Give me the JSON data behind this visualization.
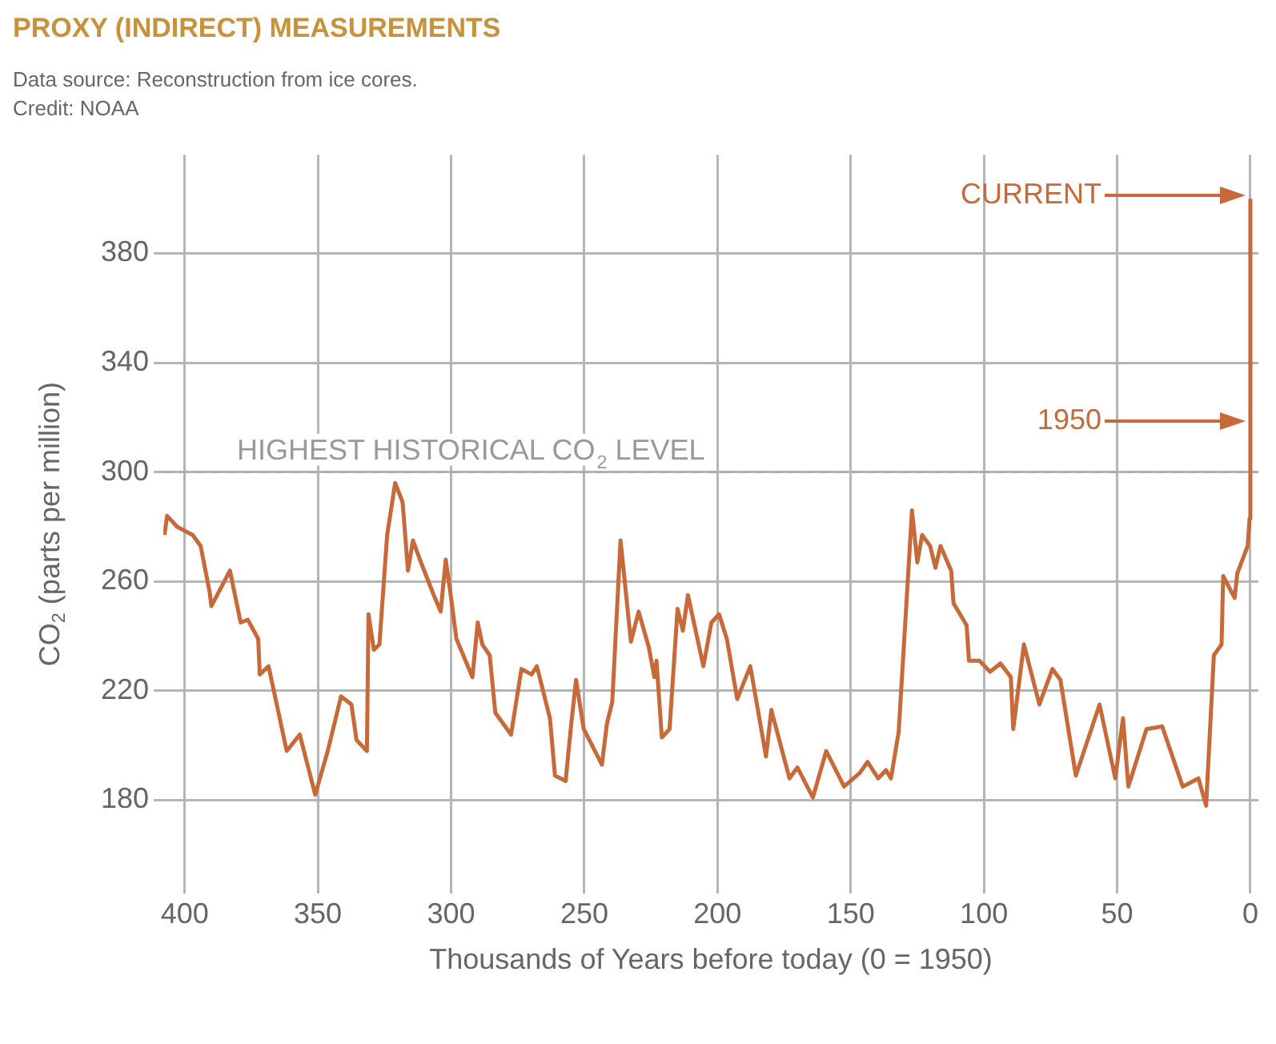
{
  "chart_data": {
    "type": "line",
    "title": "PROXY (INDIRECT) MEASUREMENTS",
    "subtitle": "Data source: Reconstruction from ice cores.",
    "xlabel": "Thousands of Years before today (0 = 1950)",
    "ylabel": "CO$_{2}$ (parts per million)",
    "x": [
      407.6,
      406.6,
      402.8,
      397,
      394,
      390.6,
      390,
      383,
      379,
      376.3,
      372.4,
      371.8,
      368.5,
      361.7,
      356.8,
      351,
      346.3,
      341.3,
      337.4,
      335.5,
      331.6,
      331,
      329,
      326.9,
      324,
      321,
      318.2,
      316.2,
      314.3,
      311.7,
      306.9,
      303.9,
      302,
      300,
      298,
      292,
      290,
      288.3,
      285.5,
      283.4,
      277.5,
      273.6,
      269.8,
      267.8,
      262.9,
      261,
      257,
      255.1,
      253.1,
      250.2,
      243.4,
      241.5,
      239.5,
      236.4,
      232.5,
      229.6,
      225.8,
      223.7,
      222.9,
      220.9,
      218,
      215,
      213,
      211.1,
      205.3,
      202.3,
      199.4,
      196.5,
      192.6,
      187.7,
      181.8,
      179.8,
      173,
      170,
      164.2,
      159.2,
      152.5,
      146.6,
      143.7,
      139.7,
      136.8,
      134.9,
      132,
      127,
      125,
      123.2,
      120.2,
      118.2,
      116.3,
      112.3,
      111.4,
      106.5,
      105.6,
      101.7,
      97.7,
      93.8,
      89.9,
      89,
      85,
      79.2,
      74.3,
      71.3,
      65.5,
      56.6,
      50.7,
      47.8,
      45.8,
      39,
      33.1,
      25.4,
      19.5,
      16.6,
      13.7,
      10.8,
      10.2,
      5.9,
      4.9,
      1,
      0.3,
      0
    ],
    "series": [
      {
        "color": "#c8693a",
        "values": [
          277,
          284,
          280,
          277,
          273,
          256,
          251,
          264,
          245,
          246,
          239,
          226,
          229,
          198,
          204,
          182,
          198,
          218,
          215,
          202,
          198,
          248,
          235,
          237,
          277,
          296,
          289,
          264,
          275,
          268,
          256,
          249,
          268,
          254,
          239,
          225,
          245,
          237,
          233,
          212,
          204,
          228,
          226,
          229,
          210,
          189,
          187,
          206,
          224,
          206,
          193,
          208,
          216,
          275,
          238,
          249,
          236,
          225,
          231,
          203,
          206,
          250,
          242,
          255,
          229,
          245,
          248,
          239,
          217,
          229,
          196,
          213,
          188,
          192,
          181,
          198,
          185,
          190,
          194,
          188,
          191,
          188,
          205,
          286,
          267,
          277,
          273,
          265,
          273,
          264,
          252,
          244,
          231,
          231,
          227,
          230,
          225,
          206,
          237,
          215,
          228,
          224,
          189,
          215,
          188,
          210,
          185,
          206,
          207,
          185,
          188,
          178,
          233,
          237,
          262,
          254,
          263,
          273,
          283,
          400
        ]
      }
    ],
    "xlim": [
      408,
      -3
    ],
    "xticks": [
      400,
      350,
      300,
      250,
      200,
      150,
      100,
      50,
      0
    ],
    "ylim": [
      146,
      416
    ],
    "yticks": [
      180,
      220,
      260,
      300,
      340,
      380
    ],
    "grid": true,
    "legend": false,
    "marker": "none",
    "line_style": "solid",
    "ref_lines": [
      {
        "axis": "y",
        "value": 300,
        "label": "HIGHEST HISTORICAL CO$_{2}$ LEVEL",
        "color": "#aaaaaa",
        "line_style": "dashed"
      }
    ],
    "annotations": [
      "CURRENT",
      "1950",
      "Credit: NOAA"
    ]
  }
}
